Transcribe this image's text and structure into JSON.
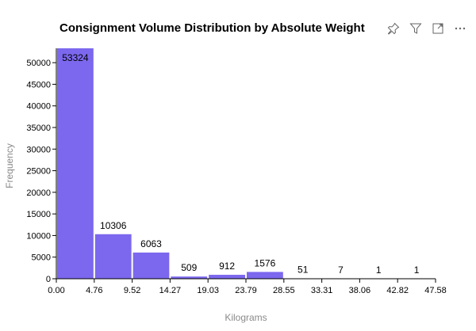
{
  "chart_data": {
    "type": "bar",
    "title": "Consignment Volume Distribution by Absolute Weight",
    "xlabel": "Kilograms",
    "ylabel": "Frequency",
    "bin_edges": [
      0.0,
      4.76,
      9.52,
      14.27,
      19.03,
      23.79,
      28.55,
      33.31,
      38.06,
      42.82,
      47.58
    ],
    "x_tick_labels": [
      "0.00",
      "4.76",
      "9.52",
      "14.27",
      "19.03",
      "23.79",
      "28.55",
      "33.31",
      "38.06",
      "42.82",
      "47.58"
    ],
    "values": [
      53324,
      10306,
      6063,
      509,
      912,
      1576,
      51,
      7,
      1,
      1
    ],
    "data_labels": [
      "53324",
      "10306",
      "6063",
      "509",
      "912",
      "1576",
      "51",
      "7",
      "1",
      "1"
    ],
    "y_ticks": [
      0,
      5000,
      10000,
      15000,
      20000,
      25000,
      30000,
      35000,
      40000,
      45000,
      50000
    ],
    "y_tick_labels": [
      "0",
      "5000",
      "10000",
      "15000",
      "20000",
      "25000",
      "30000",
      "35000",
      "40000",
      "45000",
      "50000"
    ],
    "xlim": [
      0,
      47.58
    ],
    "ylim": [
      0,
      53324
    ],
    "grid": false,
    "bar_color": "#7b68ee"
  },
  "toolbar": {
    "icons": [
      "pin-icon",
      "filter-icon",
      "expand-icon",
      "more-options-icon"
    ]
  }
}
